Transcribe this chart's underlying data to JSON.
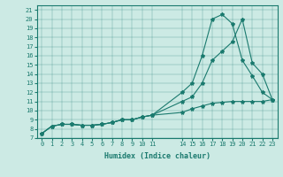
{
  "title": "",
  "xlabel": "Humidex (Indice chaleur)",
  "ylabel": "",
  "bg_color": "#cceae4",
  "line_color": "#1a7a6e",
  "xlim": [
    -0.5,
    23.5
  ],
  "ylim": [
    7,
    21.5
  ],
  "yticks": [
    7,
    8,
    9,
    10,
    11,
    12,
    13,
    14,
    15,
    16,
    17,
    18,
    19,
    20,
    21
  ],
  "xtick_positions": [
    0,
    1,
    2,
    3,
    4,
    5,
    6,
    7,
    8,
    9,
    10,
    11,
    14,
    15,
    16,
    17,
    18,
    19,
    20,
    21,
    22,
    23
  ],
  "xtick_labels": [
    "0",
    "1",
    "2",
    "3",
    "4",
    "5",
    "6",
    "7",
    "8",
    "9",
    "10",
    "11",
    "14",
    "15",
    "16",
    "17",
    "18",
    "19",
    "20",
    "21",
    "22",
    "23"
  ],
  "series1_x": [
    0,
    1,
    2,
    3,
    4,
    5,
    6,
    7,
    8,
    9,
    10,
    11,
    14,
    15,
    16,
    17,
    18,
    19,
    20,
    21,
    22,
    23
  ],
  "series1_y": [
    7.5,
    8.3,
    8.5,
    8.5,
    8.4,
    8.4,
    8.5,
    8.7,
    9.0,
    9.0,
    9.3,
    9.5,
    11.0,
    11.5,
    13.0,
    15.5,
    16.5,
    17.5,
    20.0,
    15.2,
    14.0,
    11.2
  ],
  "series2_x": [
    0,
    1,
    2,
    3,
    4,
    5,
    6,
    7,
    8,
    9,
    10,
    11,
    14,
    15,
    16,
    17,
    18,
    19,
    20,
    21,
    22,
    23
  ],
  "series2_y": [
    7.5,
    8.3,
    8.5,
    8.5,
    8.4,
    8.4,
    8.5,
    8.7,
    9.0,
    9.0,
    9.3,
    9.5,
    12.0,
    13.0,
    16.0,
    20.0,
    20.5,
    19.5,
    15.5,
    13.8,
    12.0,
    11.2
  ],
  "series3_x": [
    0,
    1,
    2,
    3,
    4,
    5,
    6,
    7,
    8,
    9,
    10,
    11,
    14,
    15,
    16,
    17,
    18,
    19,
    20,
    21,
    22,
    23
  ],
  "series3_y": [
    7.5,
    8.3,
    8.5,
    8.5,
    8.4,
    8.4,
    8.5,
    8.7,
    9.0,
    9.0,
    9.3,
    9.5,
    9.8,
    10.2,
    10.5,
    10.8,
    10.9,
    11.0,
    11.0,
    11.0,
    11.0,
    11.2
  ]
}
